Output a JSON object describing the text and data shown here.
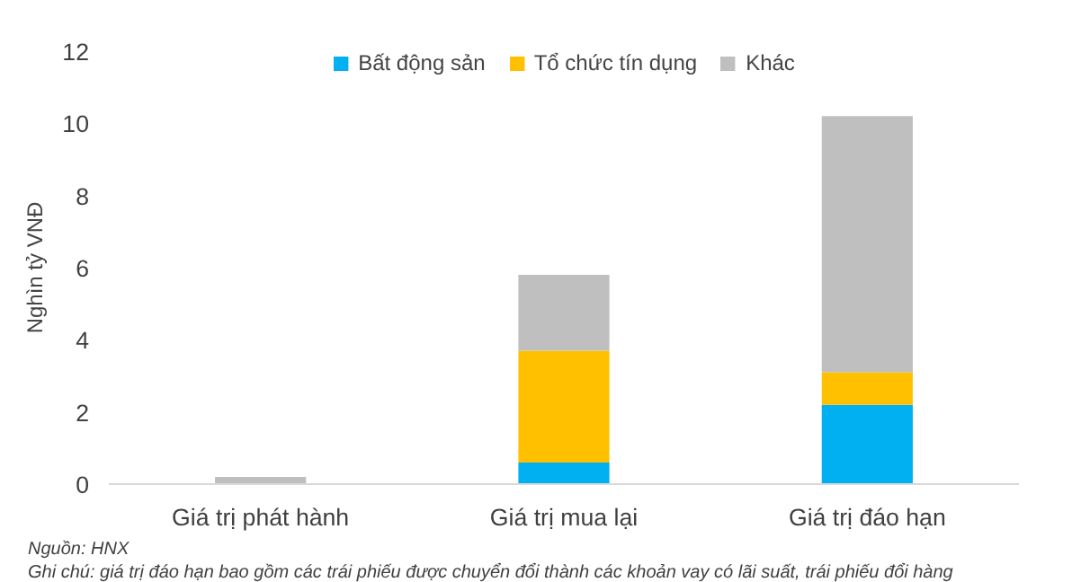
{
  "chart_data": {
    "type": "bar",
    "stacked": true,
    "categories": [
      "Giá trị phát hành",
      "Giá trị mua lại",
      "Giá trị đáo hạn"
    ],
    "series": [
      {
        "name": "Bất động sản",
        "color": "#00b0f0",
        "values": [
          0,
          0.6,
          2.2
        ]
      },
      {
        "name": "Tổ chức tín dụng",
        "color": "#ffc000",
        "values": [
          0,
          3.1,
          0.9
        ]
      },
      {
        "name": "Khác",
        "color": "#bfbfbf",
        "values": [
          0.2,
          2.1,
          7.1
        ]
      }
    ],
    "ylabel": "Nghìn tỷ VNĐ",
    "ylim": [
      0,
      12
    ],
    "yticks": [
      0,
      2,
      4,
      6,
      8,
      10,
      12
    ],
    "grid": false,
    "legend": "top",
    "annotations": [
      "Nguồn: HNX",
      "Ghi chú: giá trị đáo hạn bao gồm các trái phiếu được chuyển đổi thành các khoản vay có lãi suất, trái phiếu đổi hàng"
    ]
  }
}
